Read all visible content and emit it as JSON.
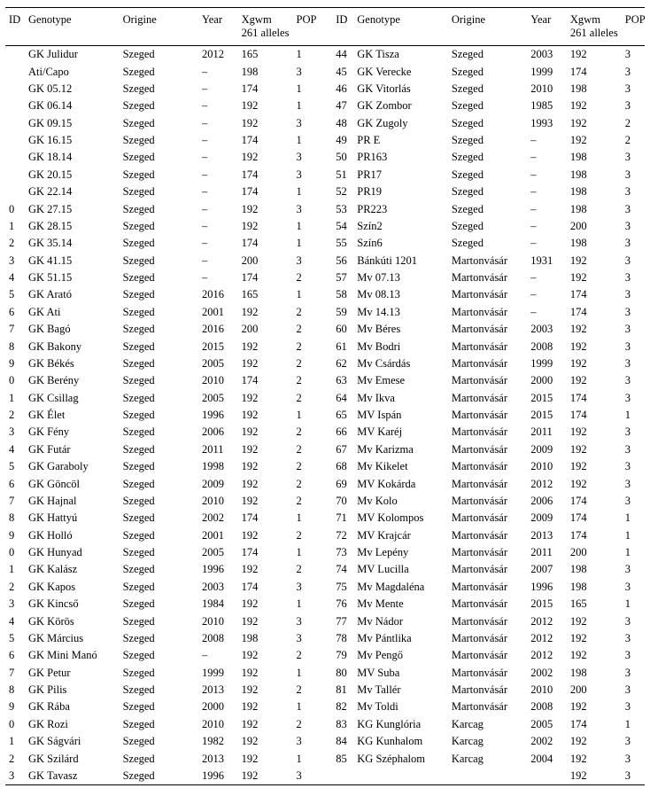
{
  "headers": {
    "id": "ID",
    "genotype": "Genotype",
    "origine": "Origine",
    "year": "Year",
    "xgwm": "Xgwm 261 alleles",
    "pop": "POP"
  },
  "left": [
    {
      "id": "",
      "gen": "GK Julidur",
      "org": "Szeged",
      "year": "2012",
      "all": "165",
      "pop": "1"
    },
    {
      "id": "",
      "gen": "Ati/Capo",
      "org": "Szeged",
      "year": "–",
      "all": "198",
      "pop": "3"
    },
    {
      "id": "",
      "gen": "GK 05.12",
      "org": "Szeged",
      "year": "–",
      "all": "174",
      "pop": "1"
    },
    {
      "id": "",
      "gen": "GK 06.14",
      "org": "Szeged",
      "year": "–",
      "all": "192",
      "pop": "1"
    },
    {
      "id": "",
      "gen": "GK 09.15",
      "org": "Szeged",
      "year": "–",
      "all": "192",
      "pop": "3"
    },
    {
      "id": "",
      "gen": "GK 16.15",
      "org": "Szeged",
      "year": "–",
      "all": "174",
      "pop": "1"
    },
    {
      "id": "",
      "gen": "GK 18.14",
      "org": "Szeged",
      "year": "–",
      "all": "192",
      "pop": "3"
    },
    {
      "id": "",
      "gen": "GK 20.15",
      "org": "Szeged",
      "year": "–",
      "all": "174",
      "pop": "3"
    },
    {
      "id": "",
      "gen": "GK 22.14",
      "org": "Szeged",
      "year": "–",
      "all": "174",
      "pop": "1"
    },
    {
      "id": "0",
      "gen": "GK 27.15",
      "org": "Szeged",
      "year": "–",
      "all": "192",
      "pop": "3"
    },
    {
      "id": "1",
      "gen": "GK 28.15",
      "org": "Szeged",
      "year": "–",
      "all": "192",
      "pop": "1"
    },
    {
      "id": "2",
      "gen": "GK 35.14",
      "org": "Szeged",
      "year": "–",
      "all": "174",
      "pop": "1"
    },
    {
      "id": "3",
      "gen": "GK 41.15",
      "org": "Szeged",
      "year": "–",
      "all": "200",
      "pop": "3"
    },
    {
      "id": "4",
      "gen": "GK 51.15",
      "org": "Szeged",
      "year": "–",
      "all": "174",
      "pop": "2"
    },
    {
      "id": "5",
      "gen": "GK Arató",
      "org": "Szeged",
      "year": "2016",
      "all": "165",
      "pop": "1"
    },
    {
      "id": "6",
      "gen": "GK Ati",
      "org": "Szeged",
      "year": "2001",
      "all": "192",
      "pop": "2"
    },
    {
      "id": "7",
      "gen": "GK Bagó",
      "org": "Szeged",
      "year": "2016",
      "all": "200",
      "pop": "2"
    },
    {
      "id": "8",
      "gen": "GK Bakony",
      "org": "Szeged",
      "year": "2015",
      "all": "192",
      "pop": "2"
    },
    {
      "id": "9",
      "gen": "GK Békés",
      "org": "Szeged",
      "year": "2005",
      "all": "192",
      "pop": "2"
    },
    {
      "id": "0",
      "gen": "GK Berény",
      "org": "Szeged",
      "year": "2010",
      "all": "174",
      "pop": "2"
    },
    {
      "id": "1",
      "gen": "GK Csillag",
      "org": "Szeged",
      "year": "2005",
      "all": "192",
      "pop": "2"
    },
    {
      "id": "2",
      "gen": "GK Élet",
      "org": "Szeged",
      "year": "1996",
      "all": "192",
      "pop": "1"
    },
    {
      "id": "3",
      "gen": "GK Fény",
      "org": "Szeged",
      "year": "2006",
      "all": "192",
      "pop": "2"
    },
    {
      "id": "4",
      "gen": "GK Futár",
      "org": "Szeged",
      "year": "2011",
      "all": "192",
      "pop": "2"
    },
    {
      "id": "5",
      "gen": "GK Garaboly",
      "org": "Szeged",
      "year": "1998",
      "all": "192",
      "pop": "2"
    },
    {
      "id": "6",
      "gen": "GK Göncöl",
      "org": "Szeged",
      "year": "2009",
      "all": "192",
      "pop": "2"
    },
    {
      "id": "7",
      "gen": "GK Hajnal",
      "org": "Szeged",
      "year": "2010",
      "all": "192",
      "pop": "2"
    },
    {
      "id": "8",
      "gen": "GK Hattyú",
      "org": "Szeged",
      "year": "2002",
      "all": "174",
      "pop": "1"
    },
    {
      "id": "9",
      "gen": "GK Holló",
      "org": "Szeged",
      "year": "2001",
      "all": "192",
      "pop": "2"
    },
    {
      "id": "0",
      "gen": "GK Hunyad",
      "org": "Szeged",
      "year": "2005",
      "all": "174",
      "pop": "1"
    },
    {
      "id": "1",
      "gen": "GK Kalász",
      "org": "Szeged",
      "year": "1996",
      "all": "192",
      "pop": "2"
    },
    {
      "id": "2",
      "gen": "GK Kapos",
      "org": "Szeged",
      "year": "2003",
      "all": "174",
      "pop": "3"
    },
    {
      "id": "3",
      "gen": "GK Kincső",
      "org": "Szeged",
      "year": "1984",
      "all": "192",
      "pop": "1"
    },
    {
      "id": "4",
      "gen": "GK Körös",
      "org": "Szeged",
      "year": "2010",
      "all": "192",
      "pop": "3"
    },
    {
      "id": "5",
      "gen": "GK Március",
      "org": "Szeged",
      "year": "2008",
      "all": "198",
      "pop": "3"
    },
    {
      "id": "6",
      "gen": "GK Mini Manó",
      "org": "Szeged",
      "year": "–",
      "all": "192",
      "pop": "2"
    },
    {
      "id": "7",
      "gen": "GK Petur",
      "org": "Szeged",
      "year": "1999",
      "all": "192",
      "pop": "1"
    },
    {
      "id": "8",
      "gen": "GK Pilis",
      "org": "Szeged",
      "year": "2013",
      "all": "192",
      "pop": "2"
    },
    {
      "id": "9",
      "gen": "GK Rába",
      "org": "Szeged",
      "year": "2000",
      "all": "192",
      "pop": "1"
    },
    {
      "id": "0",
      "gen": "GK Rozi",
      "org": "Szeged",
      "year": "2010",
      "all": "192",
      "pop": "2"
    },
    {
      "id": "1",
      "gen": "GK Ságvári",
      "org": "Szeged",
      "year": "1982",
      "all": "192",
      "pop": "3"
    },
    {
      "id": "2",
      "gen": "GK Szilárd",
      "org": "Szeged",
      "year": "2013",
      "all": "192",
      "pop": "1"
    },
    {
      "id": "3",
      "gen": "GK Tavasz",
      "org": "Szeged",
      "year": "1996",
      "all": "192",
      "pop": "3"
    }
  ],
  "right": [
    {
      "id": "44",
      "gen": "GK Tisza",
      "org": "Szeged",
      "year": "2003",
      "all": "192",
      "pop": "3"
    },
    {
      "id": "45",
      "gen": "GK Verecke",
      "org": "Szeged",
      "year": "1999",
      "all": "174",
      "pop": "3"
    },
    {
      "id": "46",
      "gen": "GK Vitorlás",
      "org": "Szeged",
      "year": "2010",
      "all": "198",
      "pop": "3"
    },
    {
      "id": "47",
      "gen": "GK Zombor",
      "org": "Szeged",
      "year": "1985",
      "all": "192",
      "pop": "3"
    },
    {
      "id": "48",
      "gen": "GK Zugoly",
      "org": "Szeged",
      "year": "1993",
      "all": "192",
      "pop": "2"
    },
    {
      "id": "49",
      "gen": "PR E",
      "org": "Szeged",
      "year": "–",
      "all": "192",
      "pop": "2"
    },
    {
      "id": "50",
      "gen": "PR163",
      "org": "Szeged",
      "year": "–",
      "all": "198",
      "pop": "3"
    },
    {
      "id": "51",
      "gen": "PR17",
      "org": "Szeged",
      "year": "–",
      "all": "198",
      "pop": "3"
    },
    {
      "id": "52",
      "gen": "PR19",
      "org": "Szeged",
      "year": "–",
      "all": "198",
      "pop": "3"
    },
    {
      "id": "53",
      "gen": "PR223",
      "org": "Szeged",
      "year": "–",
      "all": "198",
      "pop": "3"
    },
    {
      "id": "54",
      "gen": "Szín2",
      "org": "Szeged",
      "year": "–",
      "all": "200",
      "pop": "3"
    },
    {
      "id": "55",
      "gen": "Szín6",
      "org": "Szeged",
      "year": "–",
      "all": "198",
      "pop": "3"
    },
    {
      "id": "56",
      "gen": "Bánkúti 1201",
      "org": "Martonvásár",
      "year": "1931",
      "all": "192",
      "pop": "3"
    },
    {
      "id": "57",
      "gen": "Mv 07.13",
      "org": "Martonvásár",
      "year": "–",
      "all": "192",
      "pop": "3"
    },
    {
      "id": "58",
      "gen": "Mv 08.13",
      "org": "Martonvásár",
      "year": "–",
      "all": "174",
      "pop": "3"
    },
    {
      "id": "59",
      "gen": "Mv 14.13",
      "org": "Martonvásár",
      "year": "–",
      "all": "174",
      "pop": "3"
    },
    {
      "id": "60",
      "gen": "Mv Béres",
      "org": "Martonvásár",
      "year": "2003",
      "all": "192",
      "pop": "3"
    },
    {
      "id": "61",
      "gen": "Mv Bodri",
      "org": "Martonvásár",
      "year": "2008",
      "all": "192",
      "pop": "3"
    },
    {
      "id": "62",
      "gen": "Mv Csárdás",
      "org": "Martonvásár",
      "year": "1999",
      "all": "192",
      "pop": "3"
    },
    {
      "id": "63",
      "gen": "Mv Emese",
      "org": "Martonvásár",
      "year": "2000",
      "all": "192",
      "pop": "3"
    },
    {
      "id": "64",
      "gen": "Mv Ikva",
      "org": "Martonvásár",
      "year": "2015",
      "all": "174",
      "pop": "3"
    },
    {
      "id": "65",
      "gen": "MV Ispán",
      "org": "Martonvásár",
      "year": "2015",
      "all": "174",
      "pop": "1"
    },
    {
      "id": "66",
      "gen": "MV Karéj",
      "org": "Martonvásár",
      "year": "2011",
      "all": "192",
      "pop": "3"
    },
    {
      "id": "67",
      "gen": "Mv Karizma",
      "org": "Martonvásár",
      "year": "2009",
      "all": "192",
      "pop": "3"
    },
    {
      "id": "68",
      "gen": "Mv Kikelet",
      "org": "Martonvásár",
      "year": "2010",
      "all": "192",
      "pop": "3"
    },
    {
      "id": "69",
      "gen": "MV Kokárda",
      "org": "Martonvásár",
      "year": "2012",
      "all": "192",
      "pop": "3"
    },
    {
      "id": "70",
      "gen": "Mv Kolo",
      "org": "Martonvásár",
      "year": "2006",
      "all": "174",
      "pop": "3"
    },
    {
      "id": "71",
      "gen": "MV Kolompos",
      "org": "Martonvásár",
      "year": "2009",
      "all": "174",
      "pop": "1"
    },
    {
      "id": "72",
      "gen": "MV Krajcár",
      "org": "Martonvásár",
      "year": "2013",
      "all": "174",
      "pop": "1"
    },
    {
      "id": "73",
      "gen": "Mv Lepény",
      "org": "Martonvásár",
      "year": "2011",
      "all": "200",
      "pop": "1"
    },
    {
      "id": "74",
      "gen": "MV Lucilla",
      "org": "Martonvásár",
      "year": "2007",
      "all": "198",
      "pop": "3"
    },
    {
      "id": "75",
      "gen": "Mv Magdaléna",
      "org": "Martonvásár",
      "year": "1996",
      "all": "198",
      "pop": "3"
    },
    {
      "id": "76",
      "gen": "Mv Mente",
      "org": "Martonvásár",
      "year": "2015",
      "all": "165",
      "pop": "1"
    },
    {
      "id": "77",
      "gen": "Mv Nádor",
      "org": "Martonvásár",
      "year": "2012",
      "all": "192",
      "pop": "3"
    },
    {
      "id": "78",
      "gen": "Mv Pántlika",
      "org": "Martonvásár",
      "year": "2012",
      "all": "192",
      "pop": "3"
    },
    {
      "id": "79",
      "gen": "Mv Pengő",
      "org": "Martonvásár",
      "year": "2012",
      "all": "192",
      "pop": "3"
    },
    {
      "id": "80",
      "gen": "MV Suba",
      "org": "Martonvásár",
      "year": "2002",
      "all": "198",
      "pop": "3"
    },
    {
      "id": "81",
      "gen": "Mv Tallér",
      "org": "Martonvásár",
      "year": "2010",
      "all": "200",
      "pop": "3"
    },
    {
      "id": "82",
      "gen": "Mv Toldi",
      "org": "Martonvásár",
      "year": "2008",
      "all": "192",
      "pop": "3"
    },
    {
      "id": "83",
      "gen": "KG Kunglória",
      "org": "Karcag",
      "year": "2005",
      "all": "174",
      "pop": "1"
    },
    {
      "id": "84",
      "gen": "KG Kunhalom",
      "org": "Karcag",
      "year": "2002",
      "all": "192",
      "pop": "3"
    },
    {
      "id": "85",
      "gen": "KG Széphalom",
      "org": "Karcag",
      "year": "2004",
      "all": "192",
      "pop": "3"
    },
    {
      "id": "",
      "gen": "",
      "org": "",
      "year": "",
      "all": "192",
      "pop": "3"
    }
  ]
}
